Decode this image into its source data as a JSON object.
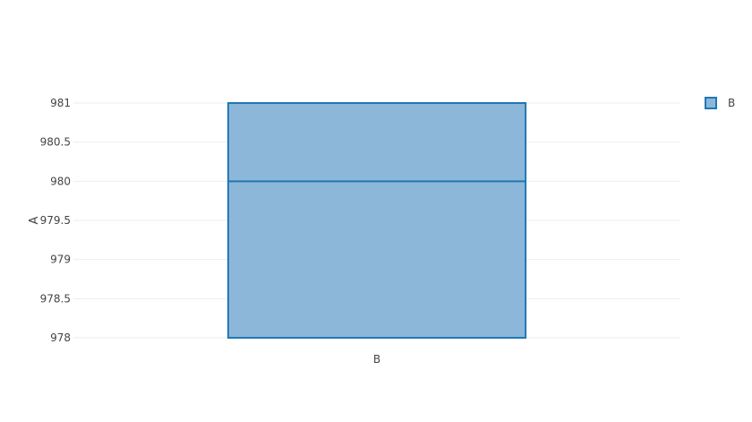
{
  "chart_data": {
    "type": "box",
    "title": "",
    "xlabel": "",
    "ylabel": "A",
    "ylim": [
      978,
      981
    ],
    "yticks": [
      "981",
      "980.5",
      "980",
      "979.5",
      "979",
      "978.5",
      "978"
    ],
    "categories": [
      "B"
    ],
    "series": [
      {
        "name": "B",
        "category": "B",
        "min": 978,
        "q1": 978,
        "median": 980,
        "q3": 981,
        "max": 981
      }
    ],
    "legend": {
      "position": "top-right",
      "entries": [
        "B"
      ]
    },
    "grid": true,
    "colors": {
      "fill": "#8db7d9",
      "stroke": "#1f77b4",
      "grid": "#eeeeee",
      "text": "#444444"
    }
  }
}
